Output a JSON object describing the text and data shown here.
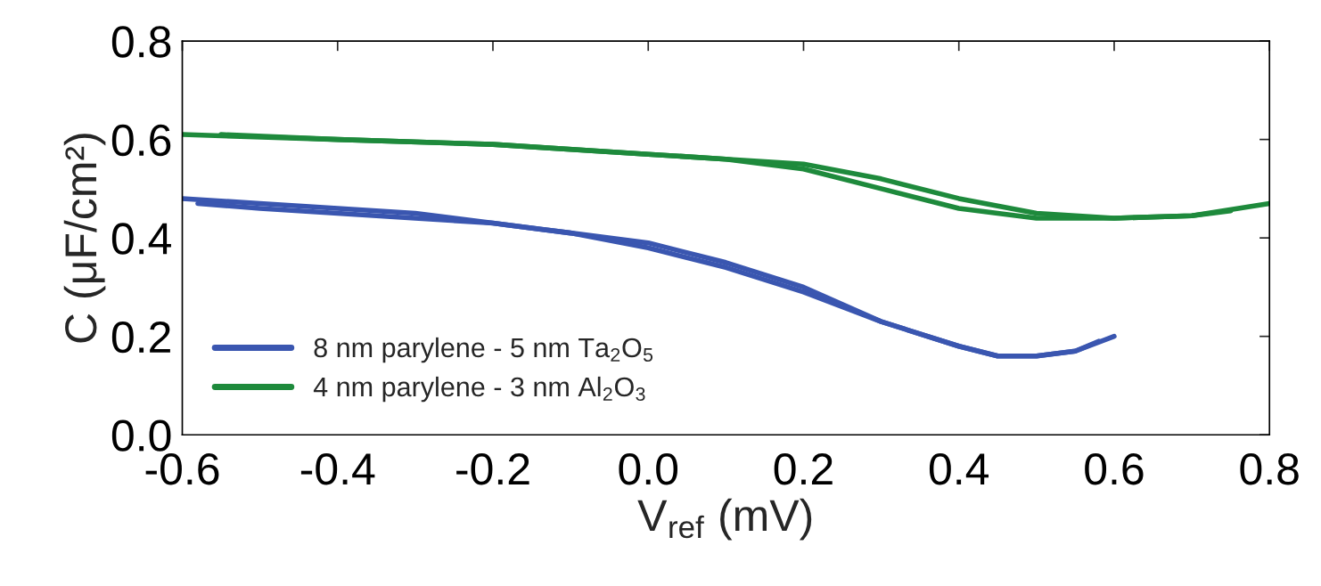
{
  "chart_data": {
    "type": "line",
    "xlabel": "V$_{ref}$ (mV)",
    "ylabel": "C (μF/cm²)",
    "xlim": [
      -0.6,
      0.8
    ],
    "xticks": [
      -0.6,
      -0.4,
      -0.2,
      {
        "value": 0,
        "label": "0.0"
      },
      0.2,
      0.4,
      0.6,
      0.8
    ],
    "ylim": [
      0,
      0.8
    ],
    "yticks": [
      {
        "value": 0,
        "label": "0.0"
      },
      0.2,
      0.4,
      0.6,
      0.8
    ],
    "grid": false,
    "legend": "bottom left",
    "line_style": "solid",
    "marker": "none",
    "series": [
      {
        "name": "8 nm parylene - 5 nm Ta$_{2}$O$_{5}$",
        "color": "#3a56b0",
        "x": [
          -0.6,
          -0.5,
          -0.4,
          -0.3,
          -0.2,
          -0.1,
          0.0,
          0.1,
          0.2,
          0.3,
          0.4,
          0.45,
          0.5,
          0.55,
          0.6
        ],
        "values": [
          0.48,
          0.47,
          0.46,
          0.45,
          0.43,
          0.41,
          0.38,
          0.34,
          0.29,
          0.23,
          0.18,
          0.16,
          0.16,
          0.17,
          0.2
        ]
      },
      {
        "name": "4 nm parylene - 3 nm Al$_{2}$O$_{3}$",
        "color": "#1e8a3c",
        "x": [
          -0.6,
          -0.4,
          -0.2,
          0.0,
          0.1,
          0.2,
          0.3,
          0.4,
          0.5,
          0.6,
          0.7,
          0.8
        ],
        "values": [
          0.61,
          0.6,
          0.59,
          0.57,
          0.56,
          0.54,
          0.5,
          0.46,
          0.44,
          0.44,
          0.445,
          0.47
        ]
      },
      {
        "color": "#3a56b0",
        "x": [
          0.58,
          0.55,
          0.5,
          0.45,
          0.4,
          0.3,
          0.2,
          0.1,
          0.0,
          -0.1,
          -0.2,
          -0.3,
          -0.4,
          -0.5,
          -0.58
        ],
        "values": [
          0.19,
          0.17,
          0.16,
          0.16,
          0.18,
          0.23,
          0.3,
          0.35,
          0.39,
          0.41,
          0.43,
          0.44,
          0.45,
          0.46,
          0.47
        ]
      },
      {
        "color": "#1e8a3c",
        "x": [
          0.75,
          0.7,
          0.6,
          0.5,
          0.4,
          0.3,
          0.2,
          0.1,
          0.0,
          -0.2,
          -0.4,
          -0.55
        ],
        "values": [
          0.455,
          0.445,
          0.44,
          0.45,
          0.48,
          0.52,
          0.55,
          0.56,
          0.57,
          0.59,
          0.6,
          0.61
        ]
      }
    ]
  }
}
